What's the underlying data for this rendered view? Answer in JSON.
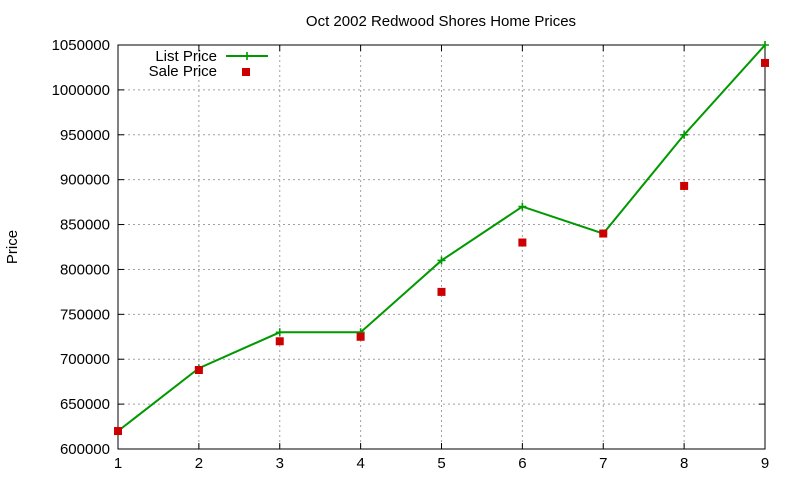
{
  "chart_data": {
    "type": "line",
    "title": "Oct 2002 Redwood Shores Home Prices",
    "xlabel": "",
    "ylabel": "Price",
    "xlim": [
      1,
      9
    ],
    "ylim": [
      600000,
      1050000
    ],
    "x_ticks": [
      1,
      2,
      3,
      4,
      5,
      6,
      7,
      8,
      9
    ],
    "y_ticks": [
      600000,
      650000,
      700000,
      750000,
      800000,
      850000,
      900000,
      950000,
      1000000,
      1050000
    ],
    "grid": true,
    "legend_position": "top-left",
    "series": [
      {
        "name": "List Price",
        "style": "line-with-plus-markers",
        "color": "#009900",
        "x": [
          1,
          2,
          3,
          4,
          5,
          6,
          7,
          8,
          9
        ],
        "values": [
          620000,
          690000,
          730000,
          730000,
          810000,
          870000,
          840000,
          950000,
          1050000
        ]
      },
      {
        "name": "Sale Price",
        "style": "square-markers",
        "color": "#cc0000",
        "x": [
          1,
          2,
          3,
          4,
          5,
          6,
          7,
          8,
          9
        ],
        "values": [
          620000,
          688000,
          720000,
          725000,
          775000,
          830000,
          840000,
          893000,
          1030000
        ]
      }
    ]
  }
}
